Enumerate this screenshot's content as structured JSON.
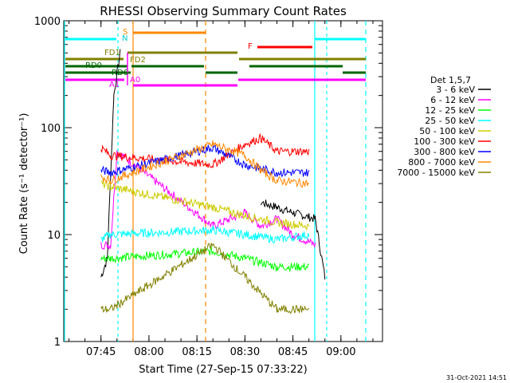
{
  "chart_data": {
    "type": "line",
    "title": "RHESSI Observing Summary Count Rates",
    "xlabel": "Start Time (27-Sep-15 07:33:22)",
    "ylabel": "Count Rate (s⁻¹ detector⁻¹)",
    "y_scale": "log",
    "ylim": [
      1,
      1000
    ],
    "xlim": [
      "07:33:22",
      "09:13:00"
    ],
    "x_ticks": [
      "07:45",
      "08:00",
      "08:15",
      "08:30",
      "08:45",
      "09:00"
    ],
    "y_ticks": [
      "1",
      "10",
      "100",
      "1000"
    ],
    "legend_title": "Det 1,5,7",
    "legend_position": "right",
    "grid": false,
    "footer": "31-Oct-2021 14:51",
    "series": [
      {
        "name": "3 - 6 keV",
        "color": "#000000",
        "points": [
          [
            "07:45",
            4
          ],
          [
            "07:47",
            6
          ],
          [
            "07:49",
            200
          ],
          [
            "07:51",
            500
          ],
          [
            "08:20",
            null
          ],
          [
            "08:35",
            20
          ],
          [
            "08:40",
            18
          ],
          [
            "08:45",
            16
          ],
          [
            "08:52",
            14
          ],
          [
            "08:55",
            4
          ]
        ]
      },
      {
        "name": "6 - 12 keV",
        "color": "#ff00ff",
        "points": [
          [
            "07:45",
            8
          ],
          [
            "07:48",
            8
          ],
          [
            "07:50",
            60
          ],
          [
            "08:20",
            12
          ],
          [
            "08:30",
            16
          ],
          [
            "08:35",
            12
          ],
          [
            "08:40",
            14
          ],
          [
            "08:45",
            10
          ],
          [
            "08:52",
            8
          ]
        ]
      },
      {
        "name": "12 - 25 keV",
        "color": "#00ff00",
        "points": [
          [
            "07:45",
            6
          ],
          [
            "07:48",
            6
          ],
          [
            "08:20",
            7
          ],
          [
            "08:30",
            6
          ],
          [
            "08:40",
            5
          ],
          [
            "08:50",
            5
          ]
        ]
      },
      {
        "name": "25 - 50 keV",
        "color": "#00ffff",
        "points": [
          [
            "07:45",
            9
          ],
          [
            "07:48",
            10
          ],
          [
            "08:20",
            11
          ],
          [
            "08:30",
            10
          ],
          [
            "08:40",
            9
          ],
          [
            "08:50",
            10
          ]
        ]
      },
      {
        "name": "50 - 100 keV",
        "color": "#cccc00",
        "points": [
          [
            "07:45",
            30
          ],
          [
            "07:48",
            28
          ],
          [
            "08:20",
            18
          ],
          [
            "08:30",
            15
          ],
          [
            "08:40",
            13
          ],
          [
            "08:50",
            12
          ]
        ]
      },
      {
        "name": "100 - 300 keV",
        "color": "#ff0000",
        "points": [
          [
            "07:45",
            65
          ],
          [
            "07:48",
            55
          ],
          [
            "08:20",
            45
          ],
          [
            "08:30",
            70
          ],
          [
            "08:35",
            80
          ],
          [
            "08:40",
            60
          ],
          [
            "08:50",
            60
          ]
        ]
      },
      {
        "name": "300 - 800 keV",
        "color": "#0000ff",
        "points": [
          [
            "07:45",
            40
          ],
          [
            "07:48",
            38
          ],
          [
            "08:20",
            65
          ],
          [
            "08:30",
            45
          ],
          [
            "08:40",
            38
          ],
          [
            "08:50",
            38
          ]
        ]
      },
      {
        "name": "800 - 7000 keV",
        "color": "#ff8800",
        "points": [
          [
            "07:45",
            35
          ],
          [
            "07:48",
            32
          ],
          [
            "08:20",
            70
          ],
          [
            "08:30",
            55
          ],
          [
            "08:35",
            40
          ],
          [
            "08:40",
            32
          ],
          [
            "08:50",
            30
          ]
        ]
      },
      {
        "name": "7000 - 15000 keV",
        "color": "#808000",
        "points": [
          [
            "07:45",
            2
          ],
          [
            "07:48",
            2
          ],
          [
            "08:20",
            8
          ],
          [
            "08:30",
            4
          ],
          [
            "08:40",
            2
          ],
          [
            "08:50",
            2
          ]
        ]
      }
    ],
    "annotations": [
      {
        "label": "S",
        "color": "#ff8800"
      },
      {
        "label": "N",
        "color": "#00cccc"
      },
      {
        "label": "F",
        "color": "#ff0000"
      },
      {
        "label": "FD1",
        "color": "#808000"
      },
      {
        "label": "FD2",
        "color": "#808000"
      },
      {
        "label": "RD0",
        "color": "#006600"
      },
      {
        "label": "RD6",
        "color": "#006600"
      },
      {
        "label": "A1",
        "color": "#ff00ff"
      },
      {
        "label": "A0",
        "color": "#ff00ff"
      }
    ]
  }
}
